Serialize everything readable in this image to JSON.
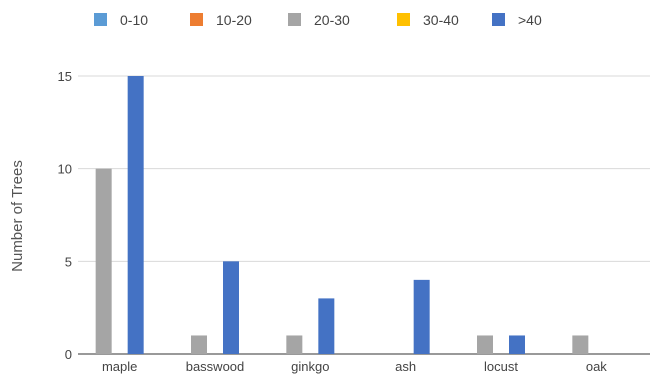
{
  "chart_data": {
    "type": "bar",
    "title": "",
    "xlabel": "",
    "ylabel": "Number of Trees",
    "categories": [
      "maple",
      "basswood",
      "ginkgo",
      "ash",
      "locust",
      "oak"
    ],
    "series": [
      {
        "name": "0-10",
        "color": "#5b9bd5",
        "values": [
          0,
          0,
          0,
          0,
          0,
          0
        ]
      },
      {
        "name": "10-20",
        "color": "#ed7d31",
        "values": [
          0,
          0,
          0,
          0,
          0,
          0
        ]
      },
      {
        "name": "20-30",
        "color": "#a5a5a5",
        "values": [
          10,
          1,
          1,
          0,
          1,
          1
        ]
      },
      {
        "name": "30-40",
        "color": "#ffc000",
        "values": [
          0,
          0,
          0,
          0,
          0,
          0
        ]
      },
      {
        "name": ">40",
        "color": "#4472c4",
        "values": [
          15,
          5,
          3,
          4,
          1,
          0
        ]
      }
    ],
    "ylim": [
      0,
      15
    ],
    "yticks": [
      0,
      5,
      10,
      15
    ],
    "grid": true,
    "legend_position": "top"
  }
}
